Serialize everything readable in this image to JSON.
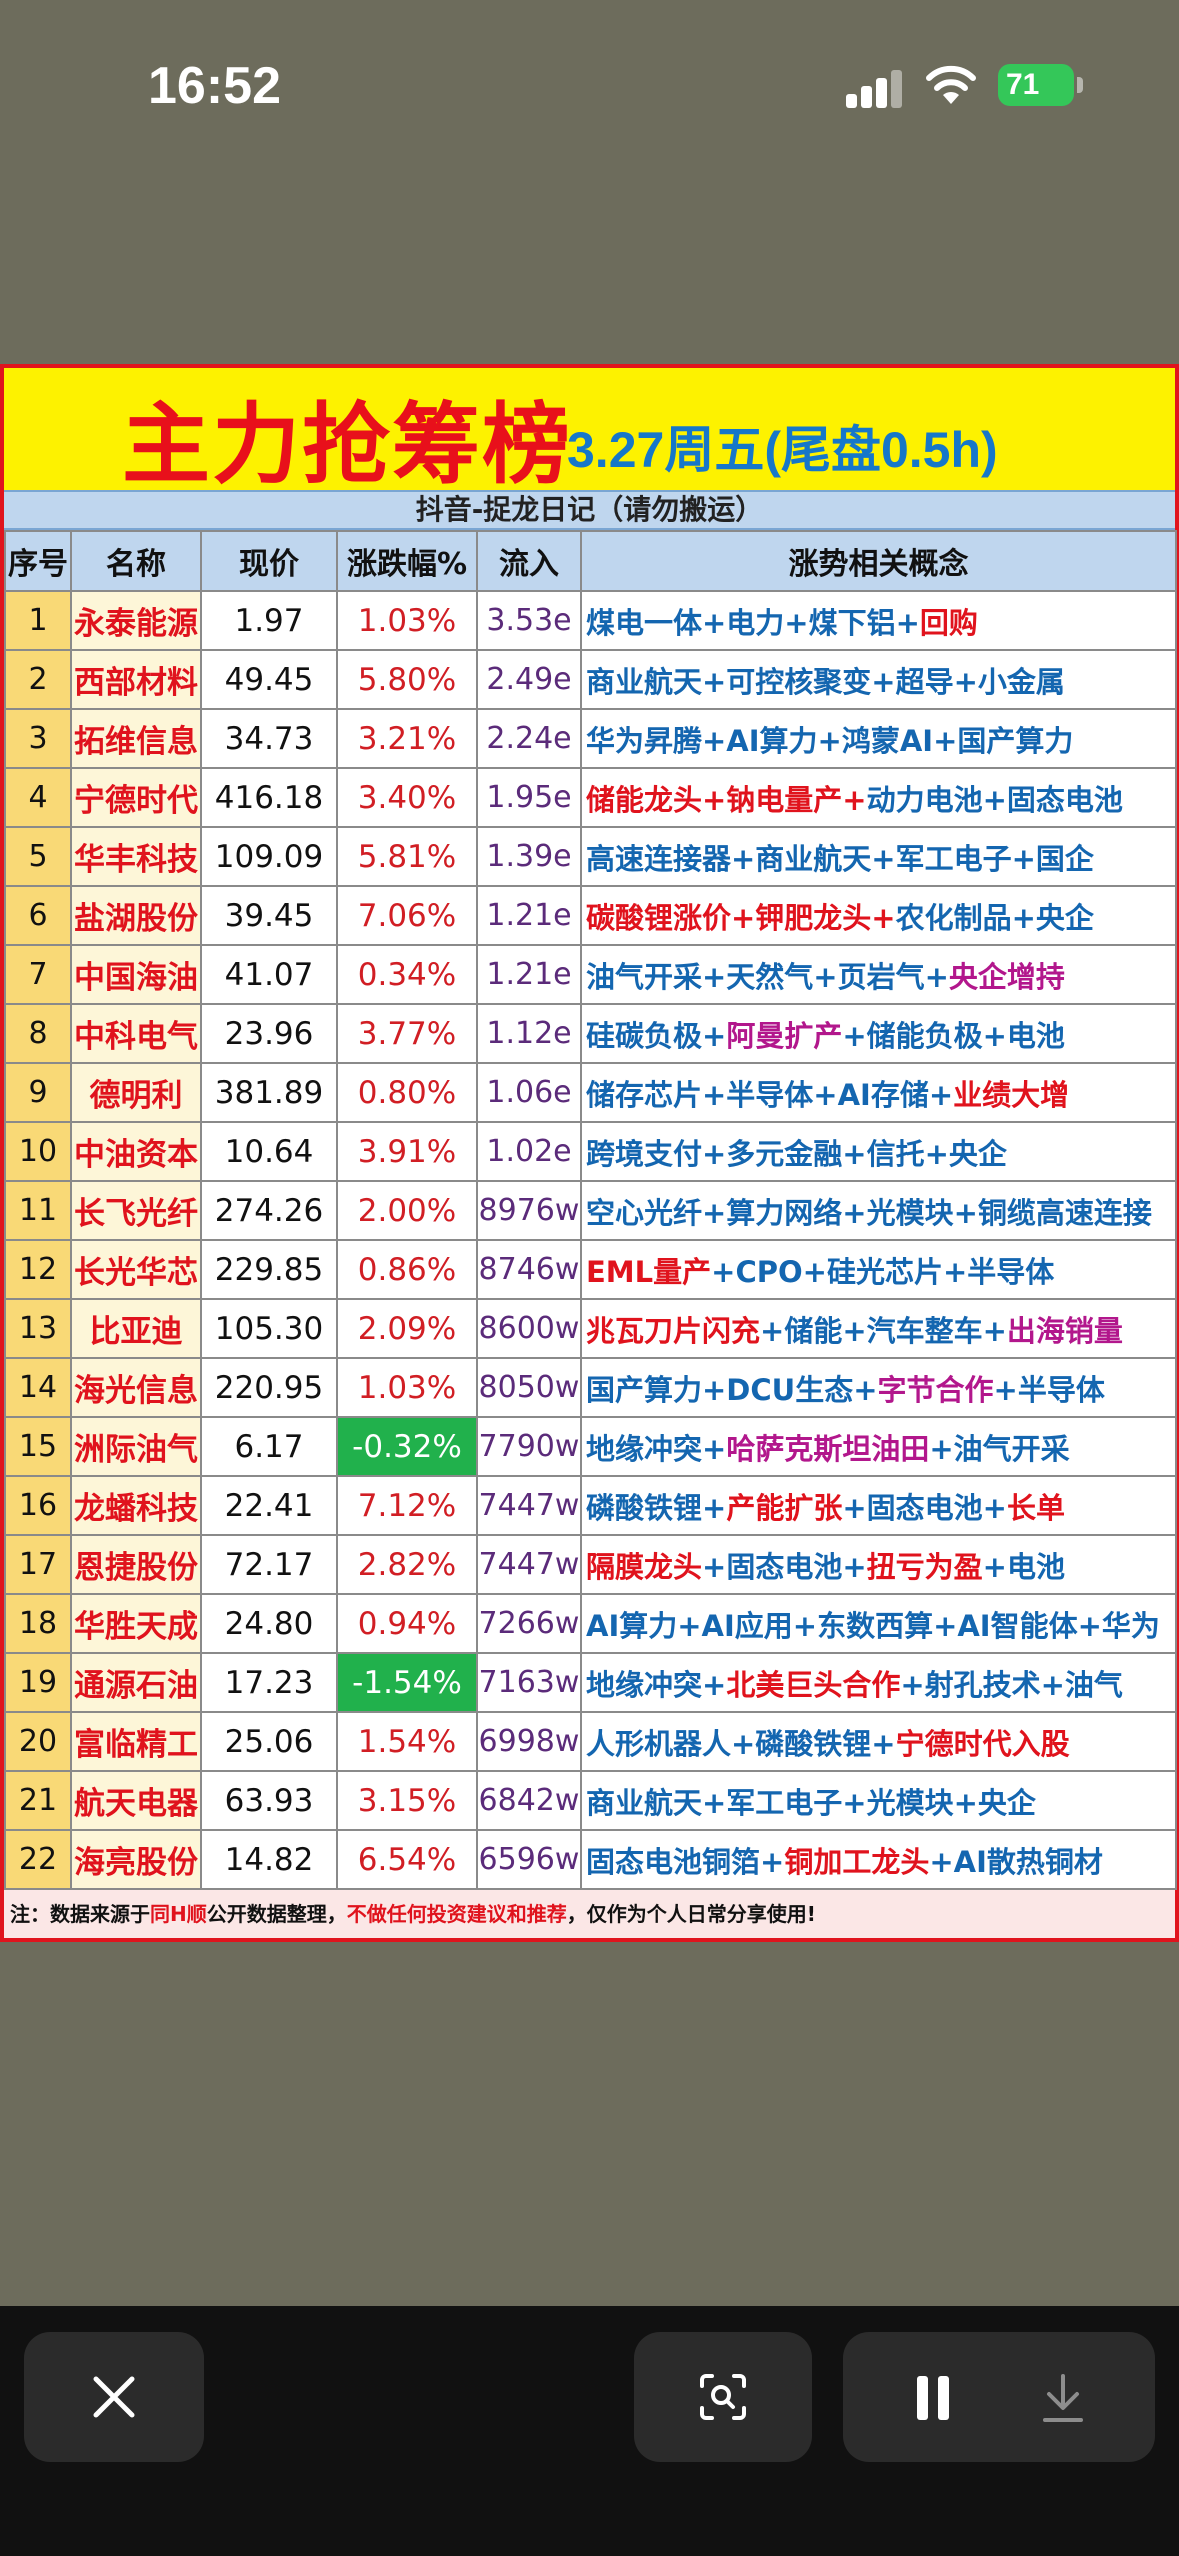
{
  "status_bar": {
    "time": "16:52",
    "battery": "71"
  },
  "board": {
    "title_main": "主力抢筹榜",
    "title_sub": "3.27周五(尾盘0.5h)",
    "subtitle": "抖音-捉龙日记（请勿搬运）",
    "headers": [
      "序号",
      "名称",
      "现价",
      "涨跌幅%",
      "流入",
      "涨势相关概念"
    ],
    "rows": [
      {
        "idx": "1",
        "name": "永泰能源",
        "price": "1.97",
        "change": "1.03%",
        "inflow": "3.53e",
        "concept": [
          {
            "t": "煤电一体+电力+煤下铝+",
            "c": ""
          },
          {
            "t": "回购",
            "c": "red"
          }
        ]
      },
      {
        "idx": "2",
        "name": "西部材料",
        "price": "49.45",
        "change": "5.80%",
        "inflow": "2.49e",
        "concept": [
          {
            "t": "商业航天+可控核聚变+超导+小金属",
            "c": ""
          }
        ]
      },
      {
        "idx": "3",
        "name": "拓维信息",
        "price": "34.73",
        "change": "3.21%",
        "inflow": "2.24e",
        "concept": [
          {
            "t": "华为昇腾+AI算力+鸿蒙AI+国产算力",
            "c": ""
          }
        ]
      },
      {
        "idx": "4",
        "name": "宁德时代",
        "price": "416.18",
        "change": "3.40%",
        "inflow": "1.95e",
        "concept": [
          {
            "t": "储能龙头+钠电量产+",
            "c": "red"
          },
          {
            "t": "动力电池+固态电池",
            "c": ""
          }
        ]
      },
      {
        "idx": "5",
        "name": "华丰科技",
        "price": "109.09",
        "change": "5.81%",
        "inflow": "1.39e",
        "concept": [
          {
            "t": "高速连接器+商业航天+军工电子+国企",
            "c": ""
          }
        ]
      },
      {
        "idx": "6",
        "name": "盐湖股份",
        "price": "39.45",
        "change": "7.06%",
        "inflow": "1.21e",
        "concept": [
          {
            "t": "碳酸锂涨价+钾肥龙头+",
            "c": "red"
          },
          {
            "t": "农化制品+央企",
            "c": ""
          }
        ]
      },
      {
        "idx": "7",
        "name": "中国海油",
        "price": "41.07",
        "change": "0.34%",
        "inflow": "1.21e",
        "concept": [
          {
            "t": "油气开采+天然气+页岩气+",
            "c": ""
          },
          {
            "t": "央企增持",
            "c": "mag"
          }
        ]
      },
      {
        "idx": "8",
        "name": "中科电气",
        "price": "23.96",
        "change": "3.77%",
        "inflow": "1.12e",
        "concept": [
          {
            "t": "硅碳负极+",
            "c": ""
          },
          {
            "t": "阿曼扩产",
            "c": "mag"
          },
          {
            "t": "+储能负极+电池",
            "c": ""
          }
        ]
      },
      {
        "idx": "9",
        "name": "德明利",
        "price": "381.89",
        "change": "0.80%",
        "inflow": "1.06e",
        "concept": [
          {
            "t": "储存芯片+半导体+AI存储+",
            "c": ""
          },
          {
            "t": "业绩大增",
            "c": "red"
          }
        ]
      },
      {
        "idx": "10",
        "name": "中油资本",
        "price": "10.64",
        "change": "3.91%",
        "inflow": "1.02e",
        "concept": [
          {
            "t": "跨境支付+多元金融+信托+央企",
            "c": ""
          }
        ]
      },
      {
        "idx": "11",
        "name": "长飞光纤",
        "price": "274.26",
        "change": "2.00%",
        "inflow": "8976w",
        "concept": [
          {
            "t": "空心光纤+算力网络+光模块+铜缆高速连接",
            "c": ""
          }
        ]
      },
      {
        "idx": "12",
        "name": "长光华芯",
        "price": "229.85",
        "change": "0.86%",
        "inflow": "8746w",
        "concept": [
          {
            "t": "EML量产",
            "c": "red"
          },
          {
            "t": "+CPO+硅光芯片+半导体",
            "c": ""
          }
        ]
      },
      {
        "idx": "13",
        "name": "比亚迪",
        "price": "105.30",
        "change": "2.09%",
        "inflow": "8600w",
        "concept": [
          {
            "t": "兆瓦刀片闪充",
            "c": "red"
          },
          {
            "t": "+储能+汽车整车+",
            "c": ""
          },
          {
            "t": "出海销量",
            "c": "mag"
          }
        ]
      },
      {
        "idx": "14",
        "name": "海光信息",
        "price": "220.95",
        "change": "1.03%",
        "inflow": "8050w",
        "concept": [
          {
            "t": "国产算力+DCU生态+",
            "c": ""
          },
          {
            "t": "字节合作",
            "c": "mag"
          },
          {
            "t": "+半导体",
            "c": ""
          }
        ]
      },
      {
        "idx": "15",
        "name": "洲际油气",
        "price": "6.17",
        "change": "-0.32%",
        "inflow": "7790w",
        "concept": [
          {
            "t": "地缘冲突+",
            "c": ""
          },
          {
            "t": "哈萨克斯坦油田",
            "c": "mag"
          },
          {
            "t": "+油气开采",
            "c": ""
          }
        ]
      },
      {
        "idx": "16",
        "name": "龙蟠科技",
        "price": "22.41",
        "change": "7.12%",
        "inflow": "7447w",
        "concept": [
          {
            "t": "磷酸铁锂+",
            "c": ""
          },
          {
            "t": "产能扩张",
            "c": "red"
          },
          {
            "t": "+固态电池+",
            "c": ""
          },
          {
            "t": "长单",
            "c": "red"
          }
        ]
      },
      {
        "idx": "17",
        "name": "恩捷股份",
        "price": "72.17",
        "change": "2.82%",
        "inflow": "7447w",
        "concept": [
          {
            "t": "隔膜龙头",
            "c": "red"
          },
          {
            "t": "+固态电池+",
            "c": ""
          },
          {
            "t": "扭亏为盈",
            "c": "red"
          },
          {
            "t": "+电池",
            "c": ""
          }
        ]
      },
      {
        "idx": "18",
        "name": "华胜天成",
        "price": "24.80",
        "change": "0.94%",
        "inflow": "7266w",
        "concept": [
          {
            "t": "AI算力+AI应用+东数西算+AI智能体+华为",
            "c": ""
          }
        ]
      },
      {
        "idx": "19",
        "name": "通源石油",
        "price": "17.23",
        "change": "-1.54%",
        "inflow": "7163w",
        "concept": [
          {
            "t": "地缘冲突+",
            "c": ""
          },
          {
            "t": "北美巨头合作",
            "c": "red"
          },
          {
            "t": "+射孔技术+油气",
            "c": ""
          }
        ]
      },
      {
        "idx": "20",
        "name": "富临精工",
        "price": "25.06",
        "change": "1.54%",
        "inflow": "6998w",
        "concept": [
          {
            "t": "人形机器人+磷酸铁锂+",
            "c": ""
          },
          {
            "t": "宁德时代入股",
            "c": "red"
          }
        ]
      },
      {
        "idx": "21",
        "name": "航天电器",
        "price": "63.93",
        "change": "3.15%",
        "inflow": "6842w",
        "concept": [
          {
            "t": "商业航天+军工电子+光模块+央企",
            "c": ""
          }
        ]
      },
      {
        "idx": "22",
        "name": "海亮股份",
        "price": "14.82",
        "change": "6.54%",
        "inflow": "6596w",
        "concept": [
          {
            "t": "固态电池铜箔+",
            "c": ""
          },
          {
            "t": "铜加工龙头",
            "c": "red"
          },
          {
            "t": "+AI散热铜材",
            "c": ""
          }
        ]
      }
    ],
    "footnote_a": "注：数据来源于",
    "footnote_b": "同H顺",
    "footnote_c": "公开数据整理，",
    "footnote_d": "不做任何投资建议和推荐",
    "footnote_e": "，仅作为个人日常分享使用!"
  },
  "toolbar": {
    "close_icon": "close-icon",
    "lens_icon": "visual-search-icon",
    "pause_icon": "pause-icon",
    "download_icon": "download-icon"
  },
  "colors": {
    "accent_red": "#e0131d",
    "title_yellow": "#fdf200",
    "concept_blue": "#1466b0",
    "negative_green": "#21b14c"
  }
}
